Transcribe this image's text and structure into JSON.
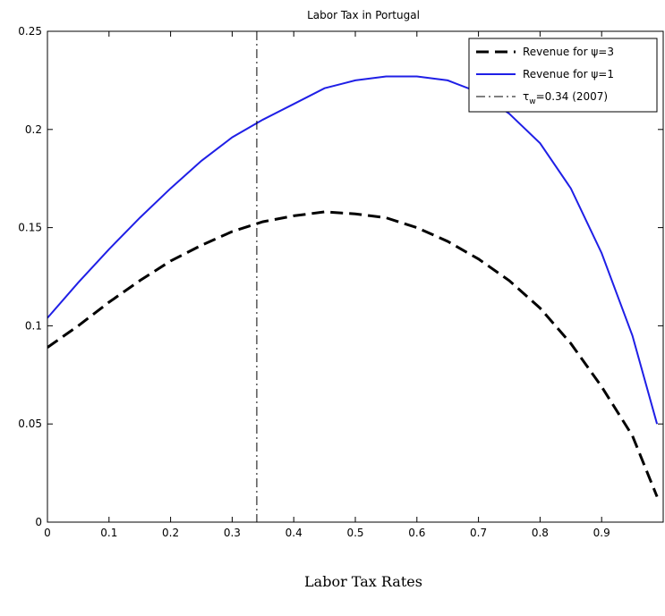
{
  "chart_data": {
    "type": "line",
    "title": "Labor Tax in Portugal",
    "xlabel": "Labor Tax Rates",
    "ylabel": "",
    "xlim": [
      0,
      1
    ],
    "ylim": [
      0,
      0.25
    ],
    "grid": false,
    "legend_position": "top-right",
    "x_ticks": [
      0,
      0.1,
      0.2,
      0.3,
      0.4,
      0.5,
      0.6,
      0.7,
      0.8,
      0.9
    ],
    "x_tick_labels": [
      "0",
      "0.1",
      "0.2",
      "0.3",
      "0.4",
      "0.5",
      "0.6",
      "0.7",
      "0.8",
      "0.9"
    ],
    "y_ticks": [
      0,
      0.05,
      0.1,
      0.15,
      0.2,
      0.25
    ],
    "y_tick_labels": [
      "0",
      "0.05",
      "0.1",
      "0.15",
      "0.2",
      "0.25"
    ],
    "series": [
      {
        "name": "Revenue for ψ=3",
        "color": "#000000",
        "style": "dashed",
        "x": [
          0,
          0.05,
          0.1,
          0.15,
          0.2,
          0.25,
          0.3,
          0.35,
          0.4,
          0.45,
          0.5,
          0.55,
          0.6,
          0.65,
          0.7,
          0.75,
          0.8,
          0.85,
          0.9,
          0.95,
          0.99
        ],
        "y": [
          0.089,
          0.1,
          0.112,
          0.123,
          0.133,
          0.141,
          0.148,
          0.153,
          0.156,
          0.158,
          0.157,
          0.155,
          0.15,
          0.143,
          0.134,
          0.123,
          0.109,
          0.091,
          0.069,
          0.044,
          0.013
        ]
      },
      {
        "name": "Revenue for ψ=1",
        "color": "#1f1fe6",
        "style": "solid",
        "x": [
          0,
          0.05,
          0.1,
          0.15,
          0.2,
          0.25,
          0.3,
          0.35,
          0.4,
          0.45,
          0.5,
          0.55,
          0.6,
          0.65,
          0.7,
          0.75,
          0.8,
          0.85,
          0.9,
          0.95,
          0.99
        ],
        "y": [
          0.104,
          0.122,
          0.139,
          0.155,
          0.17,
          0.184,
          0.196,
          0.205,
          0.213,
          0.221,
          0.225,
          0.227,
          0.227,
          0.225,
          0.219,
          0.208,
          0.193,
          0.17,
          0.137,
          0.095,
          0.05
        ]
      }
    ],
    "vertical_line": {
      "name": "τw=0.34 (2007)",
      "label_base": "τ",
      "label_sub": "w",
      "label_rest": "=0.34 (2007)",
      "x": 0.34,
      "color": "#000000",
      "style": "dashdot"
    },
    "legend": [
      {
        "label": "Revenue for  ψ=3",
        "style": "dashed",
        "color": "#000000"
      },
      {
        "label": "Revenue for  ψ=1",
        "style": "solid",
        "color": "#1f1fe6"
      },
      {
        "label_base": "τ",
        "label_sub": "w",
        "label_rest": "=0.34 (2007)",
        "style": "dashdot",
        "color": "#000000"
      }
    ]
  }
}
